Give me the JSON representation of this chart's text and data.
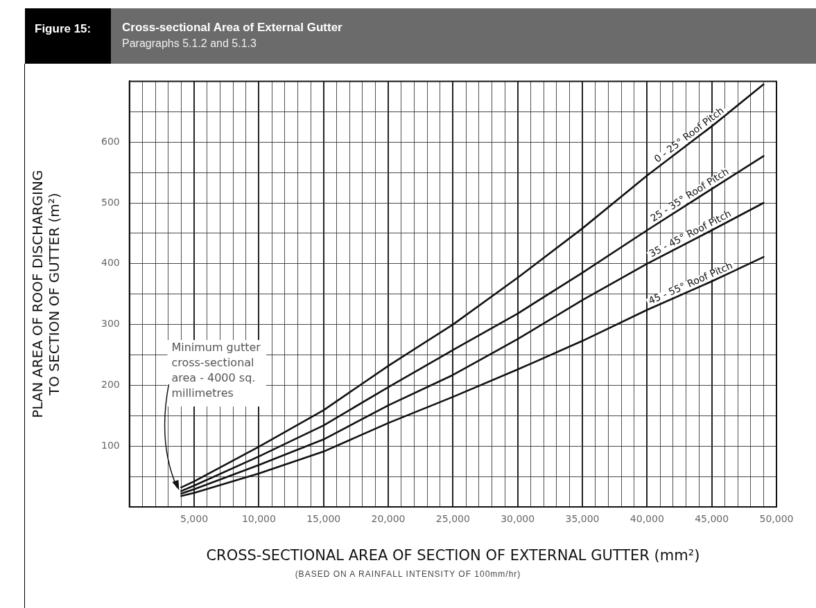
{
  "chart_data": {
    "type": "line",
    "title": "Cross-sectional Area of External Gutter",
    "subtitle": "Paragraphs 5.1.2 and 5.1.3",
    "xlabel": "CROSS-SECTIONAL AREA OF SECTION OF EXTERNAL GUTTER (mm²)",
    "ylabel": "PLAN AREA OF ROOF DISCHARGING\nTO SECTION OF GUTTER (m²)",
    "x": [
      4000,
      5000,
      10000,
      15000,
      20000,
      25000,
      30000,
      35000,
      40000,
      45000,
      49000
    ],
    "series": [
      {
        "name": "0 - 25° Roof Pitch",
        "color": "#111111",
        "values": [
          32,
          42,
          99,
          159,
          232,
          300,
          377,
          458,
          545,
          626,
          695
        ]
      },
      {
        "name": "25 - 35° Roof Pitch",
        "color": "#111111",
        "values": [
          26,
          35,
          83,
          134,
          197,
          258,
          318,
          385,
          455,
          523,
          577
        ]
      },
      {
        "name": "35 - 45° Roof Pitch",
        "color": "#111111",
        "values": [
          22,
          29,
          69,
          111,
          167,
          217,
          276,
          340,
          400,
          455,
          500
        ]
      },
      {
        "name": "45 - 55° Roof Pitch",
        "color": "#111111",
        "values": [
          18,
          23,
          55,
          91,
          138,
          181,
          226,
          273,
          324,
          371,
          411
        ]
      }
    ],
    "xlim": [
      0,
      50000
    ],
    "xticks": [
      {
        "value": 1000,
        "label": null
      },
      {
        "value": 2000,
        "label": null
      },
      {
        "value": 3000,
        "label": null
      },
      {
        "value": 4000,
        "label": null
      },
      {
        "value": 5000,
        "label": "5,000"
      },
      {
        "value": 6000,
        "label": null
      },
      {
        "value": 7000,
        "label": null
      },
      {
        "value": 8000,
        "label": null
      },
      {
        "value": 9000,
        "label": null
      },
      {
        "value": 10000,
        "label": "10,000"
      },
      {
        "value": 11000,
        "label": null
      },
      {
        "value": 12000,
        "label": null
      },
      {
        "value": 13000,
        "label": null
      },
      {
        "value": 14000,
        "label": null
      },
      {
        "value": 15000,
        "label": "15,000"
      },
      {
        "value": 16000,
        "label": null
      },
      {
        "value": 17000,
        "label": null
      },
      {
        "value": 18000,
        "label": null
      },
      {
        "value": 19000,
        "label": null
      },
      {
        "value": 20000,
        "label": "20,000"
      },
      {
        "value": 21000,
        "label": null
      },
      {
        "value": 22000,
        "label": null
      },
      {
        "value": 23000,
        "label": null
      },
      {
        "value": 24000,
        "label": null
      },
      {
        "value": 25000,
        "label": "25,000"
      },
      {
        "value": 26000,
        "label": null
      },
      {
        "value": 27000,
        "label": null
      },
      {
        "value": 28000,
        "label": null
      },
      {
        "value": 29000,
        "label": null
      },
      {
        "value": 30000,
        "label": "30,000"
      },
      {
        "value": 31000,
        "label": null
      },
      {
        "value": 32000,
        "label": null
      },
      {
        "value": 33000,
        "label": null
      },
      {
        "value": 34000,
        "label": null
      },
      {
        "value": 35000,
        "label": "35,000"
      },
      {
        "value": 36000,
        "label": null
      },
      {
        "value": 37000,
        "label": null
      },
      {
        "value": 38000,
        "label": null
      },
      {
        "value": 39000,
        "label": null
      },
      {
        "value": 40000,
        "label": "40,000"
      },
      {
        "value": 41000,
        "label": null
      },
      {
        "value": 42000,
        "label": null
      },
      {
        "value": 43000,
        "label": null
      },
      {
        "value": 44000,
        "label": null
      },
      {
        "value": 45000,
        "label": "45,000"
      },
      {
        "value": 46000,
        "label": null
      },
      {
        "value": 47000,
        "label": null
      },
      {
        "value": 48000,
        "label": null
      },
      {
        "value": 49000,
        "label": null
      },
      {
        "value": 50000,
        "label": "50,000"
      }
    ],
    "ylim": [
      0,
      700
    ],
    "yticks": [
      {
        "value": 50,
        "label": null
      },
      100,
      {
        "value": 150,
        "label": null
      },
      200,
      {
        "value": 250,
        "label": null
      },
      300,
      {
        "value": 350,
        "label": null
      },
      400,
      {
        "value": 450,
        "label": null
      },
      500,
      {
        "value": 550,
        "label": null
      },
      600,
      {
        "value": 650,
        "label": null
      }
    ],
    "grid": true,
    "marker": "none",
    "line_style": "solid",
    "annotations": [
      "Figure 15:",
      {
        "text": "Minimum gutter\ncross-sectional\narea - 4000 sq.\nmillimetres",
        "x": 4000,
        "y": 25
      },
      "(BASED ON A RAINFALL INTENSITY OF 100mm/hr)"
    ]
  }
}
